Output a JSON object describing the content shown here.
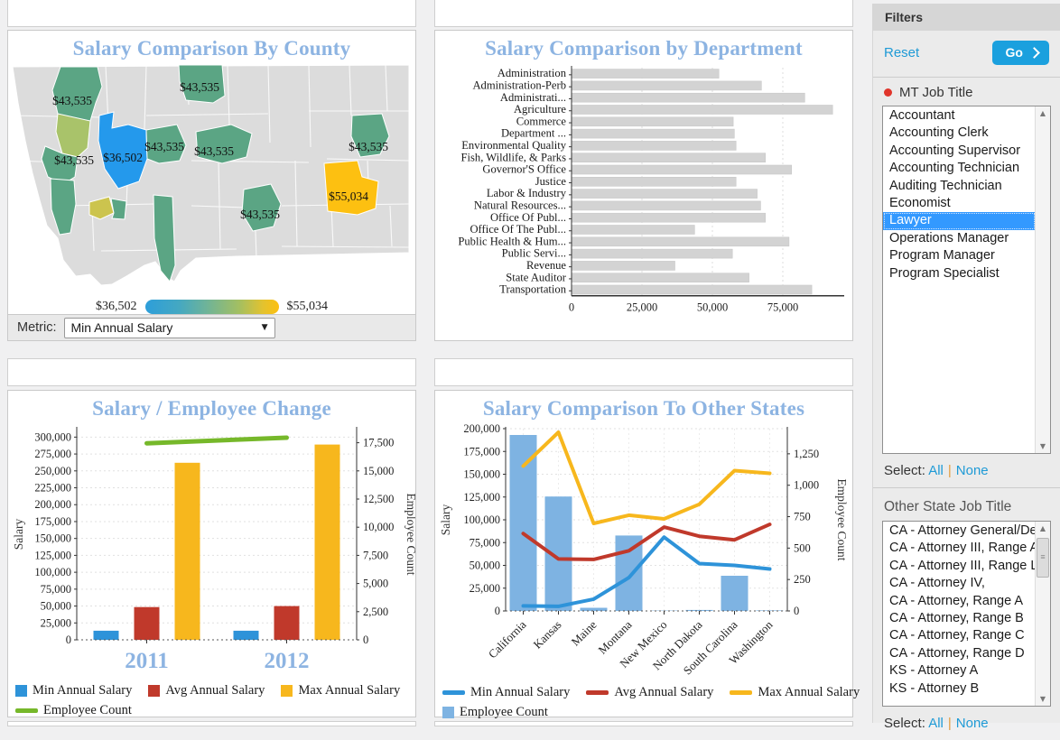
{
  "map_panel": {
    "title": "Salary Comparison By County",
    "legend_min": "$36,502",
    "legend_max": "$55,034",
    "metric_label": "Metric:",
    "metric_value": "Min Annual Salary",
    "gradient": {
      "start_color": "#2d9eda",
      "end_color": "#fdc011"
    },
    "counties": [
      {
        "color": "#5ba584",
        "label": "$43,535"
      },
      {
        "color": "#a9c36a",
        "label": ""
      },
      {
        "color": "#5ba584",
        "label": "$43,535"
      },
      {
        "color": "#5ba584",
        "label": ""
      },
      {
        "color": "#2499ec",
        "label": "$36,502"
      },
      {
        "color": "#5ba584",
        "label": "$43,535"
      },
      {
        "color": "#ccc44e",
        "label": ""
      },
      {
        "color": "#5ba584",
        "label": ""
      },
      {
        "color": "#5ba584",
        "label": ""
      },
      {
        "color": "#5ba584",
        "label": "$43,535"
      },
      {
        "color": "#5ba584",
        "label": "$43,535"
      },
      {
        "color": "#5ba584",
        "label": "$43,535"
      },
      {
        "color": "#5ba584",
        "label": "$43,535"
      },
      {
        "color": "#fdc011",
        "label": "$55,034"
      }
    ]
  },
  "chart_data": [
    {
      "type": "bar",
      "orientation": "horizontal",
      "title": "Salary Comparison by Department",
      "categories": [
        "Administration",
        "Administration-Perb",
        "Administrati...",
        "Agriculture",
        "Commerce",
        "Department ...",
        "Environmental Quality",
        "Fish, Wildlife, & Parks",
        "Governor'S Office",
        "Justice",
        "Labor & Industry",
        "Natural Resources...",
        "Office Of Publ...",
        "Office Of The Publ...",
        "Public Health & Hum...",
        "Public Servi...",
        "Revenue",
        "State Auditor",
        "Transportation"
      ],
      "values": [
        52300,
        67400,
        82800,
        92700,
        57400,
        57800,
        58400,
        68800,
        78100,
        58400,
        65900,
        67100,
        68800,
        43700,
        77200,
        57100,
        36700,
        63000,
        85300
      ],
      "bar_color": "#d3d3d3",
      "xlim": [
        0,
        96000
      ],
      "xticks": [
        0,
        25000,
        50000,
        75000
      ]
    },
    {
      "type": "combo",
      "title": "Salary / Employee Change",
      "categories": [
        "2011",
        "2012"
      ],
      "series_bars": [
        {
          "name": "Min Annual Salary",
          "color": "#2e93d9",
          "values": [
            13500,
            13500
          ]
        },
        {
          "name": "Avg Annual Salary",
          "color": "#c0392b",
          "values": [
            48500,
            50000
          ]
        },
        {
          "name": "Max Annual Salary",
          "color": "#f7b71d",
          "values": [
            262000,
            289000
          ]
        }
      ],
      "series_line": {
        "name": "Employee Count",
        "color": "#76b82a",
        "values": [
          17450,
          17950
        ]
      },
      "ylabel_left": "Salary",
      "ylabel_right": "Employee Count",
      "ylim_left": [
        0,
        312500
      ],
      "ylim_right": [
        0,
        18750
      ],
      "yticks_left": [
        0,
        25000,
        50000,
        75000,
        100000,
        125000,
        150000,
        175000,
        200000,
        225000,
        250000,
        275000,
        300000
      ],
      "yticks_right": [
        0,
        2500,
        5000,
        7500,
        10000,
        12500,
        15000,
        17500
      ]
    },
    {
      "type": "combo",
      "title": "Salary Comparison To Other States",
      "categories": [
        "California",
        "Kansas",
        "Maine",
        "Montana",
        "New Mexico",
        "North Dakota",
        "South Carolina",
        "Washington"
      ],
      "bar_series": {
        "name": "Employee Count",
        "color": "#7eb3e2",
        "values": [
          1400,
          910,
          25,
          600,
          3,
          8,
          280,
          4
        ]
      },
      "line_series": [
        {
          "name": "Min Annual Salary",
          "color": "#2e93d9",
          "values": [
            5500,
            5000,
            13000,
            36500,
            81000,
            52000,
            50000,
            46000
          ]
        },
        {
          "name": "Avg Annual Salary",
          "color": "#c0392b",
          "values": [
            85000,
            57000,
            56500,
            66000,
            92000,
            82000,
            78000,
            95000
          ]
        },
        {
          "name": "Max Annual Salary",
          "color": "#f7b71d",
          "values": [
            159000,
            196000,
            96000,
            105000,
            101000,
            117000,
            154000,
            151000
          ]
        }
      ],
      "ylabel_left": "Salary",
      "ylabel_right": "Employee Count",
      "ylim_left": [
        0,
        200000
      ],
      "ylim_right": [
        0,
        1450
      ],
      "yticks_left": [
        0,
        25000,
        50000,
        75000,
        100000,
        125000,
        150000,
        175000,
        200000
      ],
      "yticks_right": [
        0,
        250,
        500,
        750,
        1000,
        1250
      ]
    }
  ],
  "filters": {
    "title": "Filters",
    "reset_label": "Reset",
    "go_label": "Go",
    "mt_job_title": {
      "label": "MT Job Title",
      "items": [
        "Accountant",
        "Accounting Clerk",
        "Accounting Supervisor",
        "Accounting Technician",
        "Auditing Technician",
        "Economist",
        "Lawyer",
        "Operations Manager",
        "Program Manager",
        "Program Specialist"
      ],
      "selected": "Lawyer",
      "select_label": "Select:",
      "all_label": "All",
      "sep": "|",
      "none_label": "None"
    },
    "other_state_job_title": {
      "label": "Other State Job Title",
      "items": [
        "CA - Attorney General/Dep",
        "CA - Attorney III, Range A",
        "CA - Attorney III, Range L",
        "CA - Attorney IV,",
        "CA - Attorney, Range A",
        "CA - Attorney, Range B",
        "CA - Attorney, Range C",
        "CA - Attorney, Range D",
        "KS - Attorney A",
        "KS - Attorney B"
      ],
      "selected": "",
      "select_label": "Select:",
      "all_label": "All",
      "sep": "|",
      "none_label": "None"
    }
  }
}
